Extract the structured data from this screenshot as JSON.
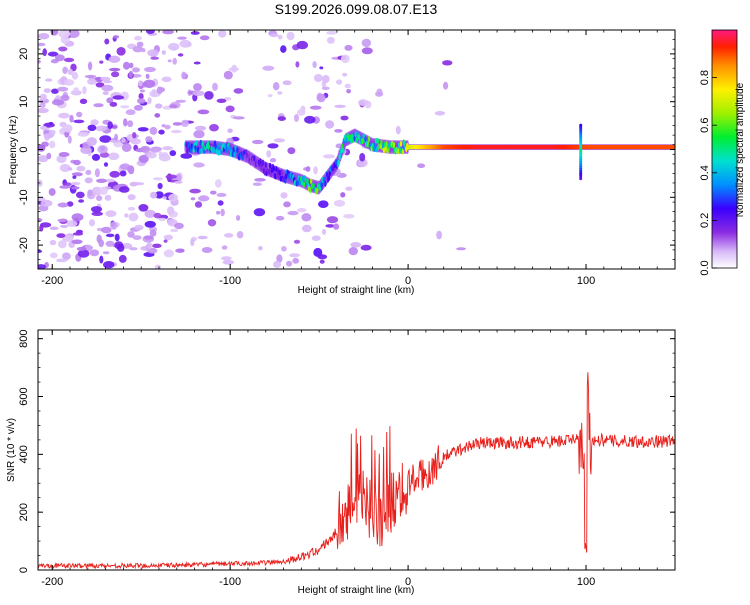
{
  "title": "S199.2026.099.08.07.E13",
  "chart_data": [
    {
      "type": "heatmap",
      "xlabel": "Height of straight line (km)",
      "ylabel": "Frequency (Hz)",
      "xlim": [
        -208,
        150
      ],
      "ylim": [
        -25,
        25
      ],
      "xticks": [
        -200,
        -100,
        0,
        100
      ],
      "xtick_labels": [
        "-200",
        "-100",
        "0",
        "100"
      ],
      "yticks": [
        -20,
        -10,
        0,
        10,
        20
      ],
      "ytick_labels": [
        "-20",
        "-10",
        "0",
        "10",
        "20"
      ],
      "colorbar": {
        "label": "Normalized spectral amplitude",
        "ticks": [
          0.0,
          0.2,
          0.4,
          0.6,
          0.8
        ],
        "tick_labels": [
          "0.0",
          "0.2",
          "0.4",
          "0.6",
          "0.8"
        ],
        "range": [
          0,
          1
        ]
      },
      "ridge": {
        "x": [
          -125,
          -110,
          -100,
          -90,
          -80,
          -70,
          -60,
          -55,
          -50,
          -45,
          -40,
          -35,
          -30,
          -25,
          -20,
          -10,
          0,
          10,
          20,
          40,
          60,
          80,
          100,
          120,
          150
        ],
        "freq": [
          0.5,
          0.5,
          0.0,
          -1.5,
          -4.0,
          -5.5,
          -6.5,
          -7.5,
          -8.0,
          -5.5,
          -3.0,
          2.0,
          3.0,
          2.0,
          1.0,
          0.5,
          0.5,
          0.5,
          0.5,
          0.5,
          0.5,
          0.5,
          0.5,
          0.5,
          0.5
        ],
        "amplitude": [
          0.35,
          0.5,
          0.45,
          0.2,
          0.2,
          0.25,
          0.5,
          0.6,
          0.55,
          0.3,
          0.4,
          0.55,
          0.5,
          0.55,
          0.6,
          0.65,
          0.7,
          0.8,
          0.9,
          0.95,
          0.95,
          0.95,
          0.9,
          0.9,
          0.9
        ]
      }
    },
    {
      "type": "line",
      "xlabel": "Height of straight line (km)",
      "ylabel": "SNR (10 * v/v)",
      "xlim": [
        -208,
        150
      ],
      "ylim": [
        0,
        830
      ],
      "xticks": [
        -200,
        -100,
        0,
        100
      ],
      "xtick_labels": [
        "-200",
        "-100",
        "0",
        "100"
      ],
      "yticks": [
        0,
        200,
        400,
        600,
        800
      ],
      "ytick_labels": [
        "0",
        "200",
        "400",
        "600",
        "800"
      ],
      "color": "#e8201c",
      "series": [
        {
          "name": "SNR",
          "x": [
            -208,
            -180,
            -150,
            -120,
            -100,
            -80,
            -70,
            -60,
            -50,
            -40,
            -35,
            -30,
            -25,
            -20,
            -15,
            -10,
            -5,
            0,
            5,
            10,
            15,
            20,
            30,
            40,
            60,
            80,
            95,
            100,
            105,
            120,
            150
          ],
          "y": [
            15,
            15,
            15,
            18,
            22,
            25,
            30,
            45,
            70,
            130,
            200,
            240,
            230,
            200,
            180,
            230,
            280,
            300,
            320,
            330,
            360,
            390,
            420,
            440,
            440,
            445,
            450,
            440,
            450,
            445,
            445
          ]
        }
      ]
    }
  ]
}
